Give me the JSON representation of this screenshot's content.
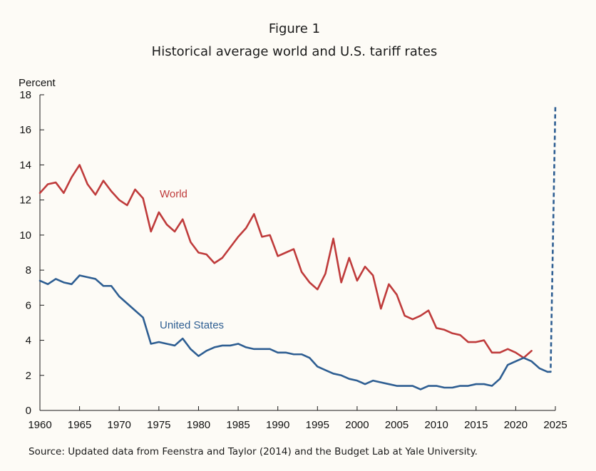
{
  "chart_data": {
    "type": "line",
    "figure_label": "Figure 1",
    "title": "Historical average world and U.S. tariff rates",
    "ylabel": "Percent",
    "xlabel": "",
    "xlim": [
      1960,
      2025
    ],
    "ylim": [
      0,
      18
    ],
    "x_ticks": [
      1960,
      1965,
      1970,
      1975,
      1980,
      1985,
      1990,
      1995,
      2000,
      2005,
      2010,
      2015,
      2020,
      2025
    ],
    "y_ticks": [
      0,
      2,
      4,
      6,
      8,
      10,
      12,
      14,
      16,
      18
    ],
    "grid": false,
    "source": "Source: Updated data from Feenstra and Taylor (2014) and the Budget Lab at Yale University.",
    "colors": {
      "world": "#bf3b3b",
      "us": "#2e5e92"
    },
    "series": [
      {
        "name": "World",
        "label": "World",
        "color": "#bf3b3b",
        "x": [
          1960,
          1961,
          1962,
          1963,
          1964,
          1965,
          1966,
          1967,
          1968,
          1969,
          1970,
          1971,
          1972,
          1973,
          1974,
          1975,
          1976,
          1977,
          1978,
          1979,
          1980,
          1981,
          1982,
          1983,
          1984,
          1985,
          1986,
          1987,
          1988,
          1989,
          1990,
          1991,
          1992,
          1993,
          1994,
          1995,
          1996,
          1997,
          1998,
          1999,
          2000,
          2001,
          2002,
          2003,
          2004,
          2005,
          2006,
          2007,
          2008,
          2009,
          2010,
          2011,
          2012,
          2013,
          2014,
          2015,
          2016,
          2017,
          2018,
          2019,
          2020,
          2021,
          2022
        ],
        "values": [
          12.4,
          12.9,
          13.0,
          12.4,
          13.3,
          14.0,
          12.9,
          12.3,
          13.1,
          12.5,
          12.0,
          11.7,
          12.6,
          12.1,
          10.2,
          11.3,
          10.6,
          10.2,
          10.9,
          9.6,
          9.0,
          8.9,
          8.4,
          8.7,
          9.3,
          9.9,
          10.4,
          11.2,
          9.9,
          10.0,
          8.8,
          9.0,
          9.2,
          7.9,
          7.3,
          6.9,
          7.8,
          9.8,
          7.3,
          8.7,
          7.4,
          8.2,
          7.7,
          5.8,
          7.2,
          6.6,
          5.4,
          5.2,
          5.4,
          5.7,
          4.7,
          4.6,
          4.4,
          4.3,
          3.9,
          3.9,
          4.0,
          3.3,
          3.3,
          3.5,
          3.3,
          3.0,
          3.4
        ]
      },
      {
        "name": "United States",
        "label": "United States",
        "color": "#2e5e92",
        "x": [
          1960,
          1961,
          1962,
          1963,
          1964,
          1965,
          1966,
          1967,
          1968,
          1969,
          1970,
          1971,
          1972,
          1973,
          1974,
          1975,
          1976,
          1977,
          1978,
          1979,
          1980,
          1981,
          1982,
          1983,
          1984,
          1985,
          1986,
          1987,
          1988,
          1989,
          1990,
          1991,
          1992,
          1993,
          1994,
          1995,
          1996,
          1997,
          1998,
          1999,
          2000,
          2001,
          2002,
          2003,
          2004,
          2005,
          2006,
          2007,
          2008,
          2009,
          2010,
          2011,
          2012,
          2013,
          2014,
          2015,
          2016,
          2017,
          2018,
          2019,
          2020,
          2021,
          2022,
          2023,
          2024
        ],
        "values": [
          7.4,
          7.2,
          7.5,
          7.3,
          7.2,
          7.7,
          7.6,
          7.5,
          7.1,
          7.1,
          6.5,
          6.1,
          5.7,
          5.3,
          3.8,
          3.9,
          3.8,
          3.7,
          4.1,
          3.5,
          3.1,
          3.4,
          3.6,
          3.7,
          3.7,
          3.8,
          3.6,
          3.5,
          3.5,
          3.5,
          3.3,
          3.3,
          3.2,
          3.2,
          3.0,
          2.5,
          2.3,
          2.1,
          2.0,
          1.8,
          1.7,
          1.5,
          1.7,
          1.6,
          1.5,
          1.4,
          1.4,
          1.4,
          1.2,
          1.4,
          1.4,
          1.3,
          1.3,
          1.4,
          1.4,
          1.5,
          1.5,
          1.4,
          1.8,
          2.6,
          2.8,
          3.0,
          2.8,
          2.4,
          2.2
        ]
      },
      {
        "name": "United States (projected)",
        "style": "dashed",
        "color": "#2e5e92",
        "x": [
          2024,
          2024.4,
          2025
        ],
        "values": [
          2.2,
          2.2,
          17.4
        ]
      }
    ]
  }
}
